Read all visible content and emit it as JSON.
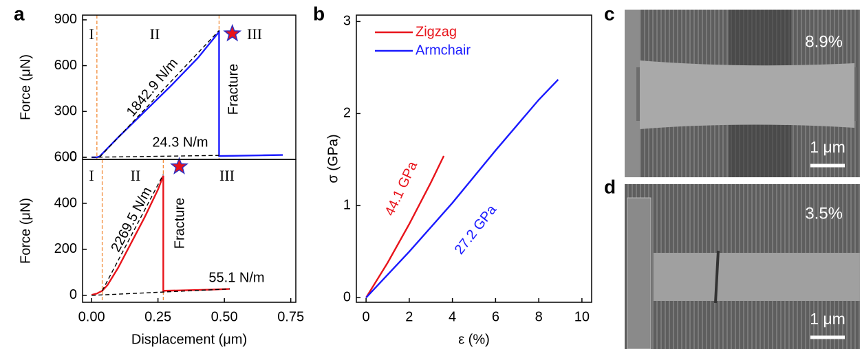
{
  "chart_data": [
    {
      "type": "line",
      "panel_label": "a",
      "ylabel": "Force (μN)",
      "xlim": [
        -0.034,
        0.769
      ],
      "ylim": [
        -14,
        931
      ],
      "yticks": [
        0,
        300,
        600,
        900
      ],
      "series": [
        {
          "color": "#1a1aff",
          "style": "solid",
          "x": [
            0,
            0.02,
            0.03,
            0.1,
            0.2,
            0.3,
            0.4,
            0.47,
            0.48,
            0.48,
            0.55,
            0.65,
            0.72
          ],
          "values": [
            0,
            0,
            5,
            130,
            300,
            470,
            650,
            800,
            820,
            8,
            10,
            13,
            15
          ]
        },
        {
          "color": "#000000",
          "style": "dashed",
          "x": [
            0.03,
            0.48
          ],
          "values": [
            0,
            830
          ]
        },
        {
          "color": "#000000",
          "style": "dashed",
          "x": [
            0,
            0.48
          ],
          "values": [
            0,
            12
          ]
        }
      ],
      "region_boundaries": [
        0.02,
        0.48
      ],
      "markers": [
        {
          "x": 0.53,
          "y": 810
        }
      ],
      "annotations": [
        {
          "text": "I"
        },
        {
          "text": "II"
        },
        {
          "text": "III"
        },
        {
          "text": "1842.9 N/m"
        },
        {
          "text": "24.3 N/m"
        },
        {
          "text": "Fracture"
        }
      ]
    },
    {
      "type": "line",
      "ylabel": "Force (μN)",
      "xlabel": "Displacement (μm)",
      "xlim": [
        -0.034,
        0.769
      ],
      "ylim": [
        -30,
        591
      ],
      "xticks": [
        {
          "value": 0,
          "label": "0.00"
        },
        {
          "value": 0.25,
          "label": "0.25"
        },
        {
          "value": 0.5,
          "label": "0.50"
        },
        {
          "value": 0.75,
          "label": "0.75"
        }
      ],
      "yticks": [
        0,
        200,
        400,
        600
      ],
      "series": [
        {
          "color": "#e8141b",
          "style": "solid",
          "x": [
            0,
            0.02,
            0.04,
            0.06,
            0.1,
            0.15,
            0.2,
            0.25,
            0.27,
            0.27,
            0.35,
            0.45,
            0.52
          ],
          "values": [
            2,
            8,
            20,
            45,
            120,
            230,
            340,
            460,
            520,
            20,
            22,
            25,
            28
          ]
        },
        {
          "color": "#000000",
          "style": "dashed",
          "x": [
            0.04,
            0.27
          ],
          "values": [
            20,
            525
          ]
        },
        {
          "color": "#000000",
          "style": "dashed",
          "x": [
            0,
            0.52
          ],
          "values": [
            0,
            28
          ]
        }
      ],
      "region_boundaries": [
        0.04,
        0.27
      ],
      "markers": [
        {
          "x": 0.33,
          "y": 560
        }
      ],
      "annotations": [
        {
          "text": "I"
        },
        {
          "text": "II"
        },
        {
          "text": "III"
        },
        {
          "text": "2269.5 N/m"
        },
        {
          "text": "55.1 N/m"
        },
        {
          "text": "Fracture"
        }
      ]
    },
    {
      "type": "line",
      "panel_label": "b",
      "ylabel": "σ (GPa)",
      "xlabel": "ε (%)",
      "xlim": [
        -0.45,
        10.45
      ],
      "ylim": [
        -0.05,
        3.07
      ],
      "xticks": [
        0,
        2,
        4,
        6,
        8,
        10
      ],
      "yticks": [
        0,
        1,
        2,
        3
      ],
      "series": [
        {
          "name": "Zigzag",
          "color": "#e8141b",
          "style": "solid",
          "x": [
            0,
            1,
            2,
            3,
            3.6
          ],
          "values": [
            0,
            0.38,
            0.8,
            1.25,
            1.54
          ]
        },
        {
          "name": "Armchair",
          "color": "#1a1aff",
          "style": "solid",
          "x": [
            0,
            2,
            4,
            6,
            8,
            8.9
          ],
          "values": [
            0,
            0.5,
            1.03,
            1.6,
            2.15,
            2.37
          ]
        }
      ],
      "annotations": [
        {
          "text": "44.1 GPa",
          "color": "#e8141b"
        },
        {
          "text": "27.2 GPa",
          "color": "#1a1aff"
        }
      ]
    }
  ],
  "images": [
    {
      "label": "c",
      "strain": "8.9%",
      "scale_bar": "1 μm"
    },
    {
      "label": "d",
      "strain": "3.5%",
      "scale_bar": "1 μm"
    }
  ]
}
